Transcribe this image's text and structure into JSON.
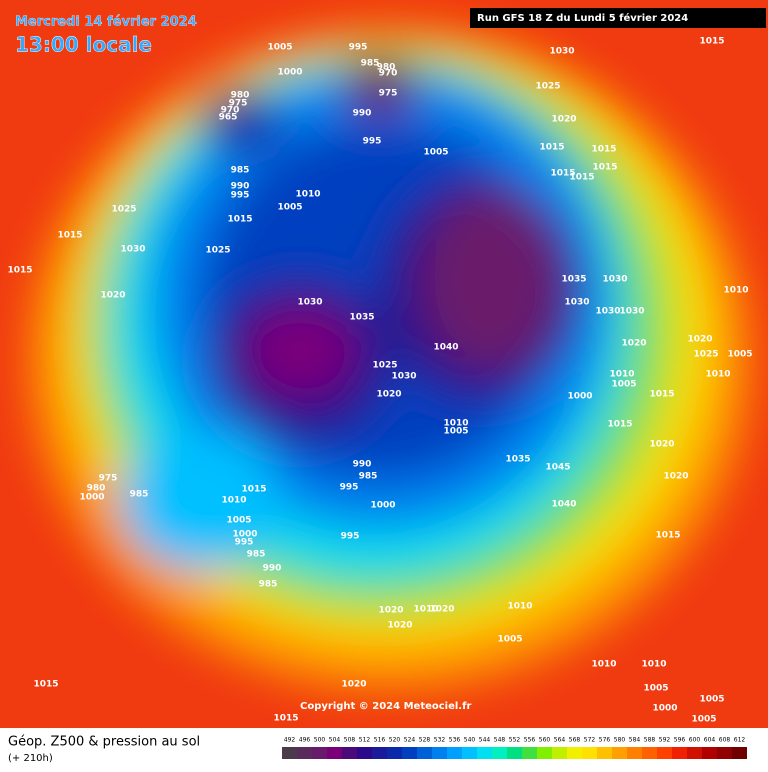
{
  "header": {
    "date": "Mercredi 14 février 2024",
    "time": "13:00 locale",
    "run": "Run GFS 18 Z du Lundi 5 février 2024"
  },
  "footer": {
    "title": "Géop. Z500 & pression au sol",
    "lead": "(+ 210h)",
    "copyright": "Copyright © 2024 Meteociel.fr"
  },
  "colorbar": {
    "values": [
      492,
      496,
      500,
      504,
      508,
      512,
      516,
      520,
      524,
      528,
      532,
      536,
      540,
      544,
      548,
      552,
      556,
      560,
      564,
      568,
      572,
      576,
      580,
      584,
      588,
      592,
      596,
      600,
      604,
      608,
      612
    ],
    "colors": [
      "#4a3a4a",
      "#5a2a5a",
      "#6a1a6a",
      "#7a007a",
      "#4a0a7a",
      "#2a0a8a",
      "#1a1a9a",
      "#0a2aaa",
      "#0040c0",
      "#0060d8",
      "#0080f0",
      "#00a0ff",
      "#00c0ff",
      "#00e0f0",
      "#00f0c0",
      "#00e080",
      "#40e040",
      "#80f000",
      "#c0f000",
      "#f0f000",
      "#ffe000",
      "#ffc000",
      "#ffa000",
      "#ff8000",
      "#ff6000",
      "#ff4000",
      "#f02000",
      "#d01000",
      "#b00000",
      "#900000",
      "#700000"
    ]
  },
  "pressure_labels": [
    "1005",
    "995",
    "1030",
    "1015",
    "1000",
    "985",
    "980",
    "970",
    "975",
    "1025",
    "980",
    "975",
    "970",
    "965",
    "990",
    "1020",
    "995",
    "1005",
    "1015",
    "1015",
    "1015",
    "1015",
    "1015",
    "985",
    "990",
    "995",
    "1010",
    "1005",
    "1025",
    "1015",
    "1015",
    "1030",
    "1025",
    "1015",
    "1035",
    "1030",
    "1020",
    "1030",
    "1030",
    "1035",
    "1030",
    "1030",
    "1010",
    "1020",
    "1020",
    "1025",
    "1005",
    "1040",
    "1025",
    "1030",
    "1010",
    "1005",
    "1010",
    "1000",
    "1015",
    "1020",
    "1015",
    "1010",
    "1005",
    "1035",
    "1045",
    "990",
    "985",
    "995",
    "1015",
    "1010",
    "1000",
    "1040",
    "1005",
    "1000",
    "995",
    "985",
    "990",
    "985",
    "995",
    "1015",
    "1020",
    "1020",
    "975",
    "980",
    "1000",
    "985",
    "1020",
    "1010",
    "1020",
    "1020",
    "1010",
    "1005",
    "1010",
    "1010",
    "1005",
    "1015",
    "1020",
    "1000",
    "1005",
    "1005",
    "1015"
  ]
}
